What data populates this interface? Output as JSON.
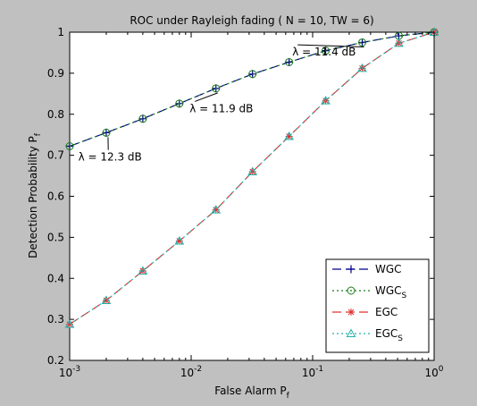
{
  "chart_data": {
    "type": "line",
    "title": "ROC under Rayleigh fading ( N = 10, TW = 6)",
    "xlabel": {
      "main": "False Alarm P",
      "sub": "f"
    },
    "ylabel": {
      "main": "Detection Probability P",
      "sub": "f"
    },
    "x_scale": "log",
    "xlim": [
      0.001,
      1
    ],
    "ylim": [
      0.2,
      1
    ],
    "grid": false,
    "x_ticks": [
      {
        "value": 0.001,
        "base": "10",
        "exp": "-3"
      },
      {
        "value": 0.01,
        "base": "10",
        "exp": "-2"
      },
      {
        "value": 0.1,
        "base": "10",
        "exp": "-1"
      },
      {
        "value": 1,
        "base": "10",
        "exp": "0"
      }
    ],
    "y_ticks": [
      "0.2",
      "0.3",
      "0.4",
      "0.5",
      "0.6",
      "0.7",
      "0.8",
      "0.9",
      "1"
    ],
    "x": [
      0.001,
      0.002,
      0.004,
      0.008,
      0.016,
      0.032,
      0.064,
      0.128,
      0.256,
      0.512,
      1.0
    ],
    "series": [
      {
        "name": "WGC",
        "legend_sub": "",
        "color": "#00008b",
        "dash": "10 5",
        "marker": "plus",
        "values": [
          0.722,
          0.755,
          0.789,
          0.826,
          0.863,
          0.898,
          0.927,
          0.955,
          0.975,
          0.991,
          1.0
        ]
      },
      {
        "name": "WGC",
        "legend_sub": "S",
        "color": "#1a7a1a",
        "dash": "2 3",
        "marker": "circle",
        "values": [
          0.722,
          0.755,
          0.789,
          0.826,
          0.863,
          0.898,
          0.927,
          0.955,
          0.975,
          0.991,
          1.0
        ]
      },
      {
        "name": "EGC",
        "legend_sub": "",
        "color": "#e03030",
        "dash": "10 5",
        "marker": "star",
        "values": [
          0.288,
          0.346,
          0.418,
          0.491,
          0.567,
          0.66,
          0.746,
          0.833,
          0.912,
          0.973,
          1.0
        ]
      },
      {
        "name": "EGC",
        "legend_sub": "S",
        "color": "#20b2aa",
        "dash": "2 3",
        "marker": "triangle",
        "values": [
          0.288,
          0.346,
          0.418,
          0.491,
          0.567,
          0.66,
          0.746,
          0.833,
          0.912,
          0.973,
          1.0
        ]
      }
    ],
    "annotations": [
      {
        "sym": "λ",
        "text": " = 12.3 dB",
        "x": 0.002,
        "y": 0.755,
        "tx": 0.00215,
        "ty": 0.687,
        "anchor": "middle"
      },
      {
        "sym": "λ",
        "text": " = 11.9 dB",
        "x": 0.016,
        "y": 0.863,
        "tx": 0.0097,
        "ty": 0.805,
        "anchor": "start"
      },
      {
        "sym": "λ",
        "text": " = 11.4 dB",
        "x": 0.256,
        "y": 0.975,
        "tx": 0.068,
        "ty": 0.943,
        "anchor": "start"
      }
    ],
    "legend_placement": "bottom-right"
  }
}
